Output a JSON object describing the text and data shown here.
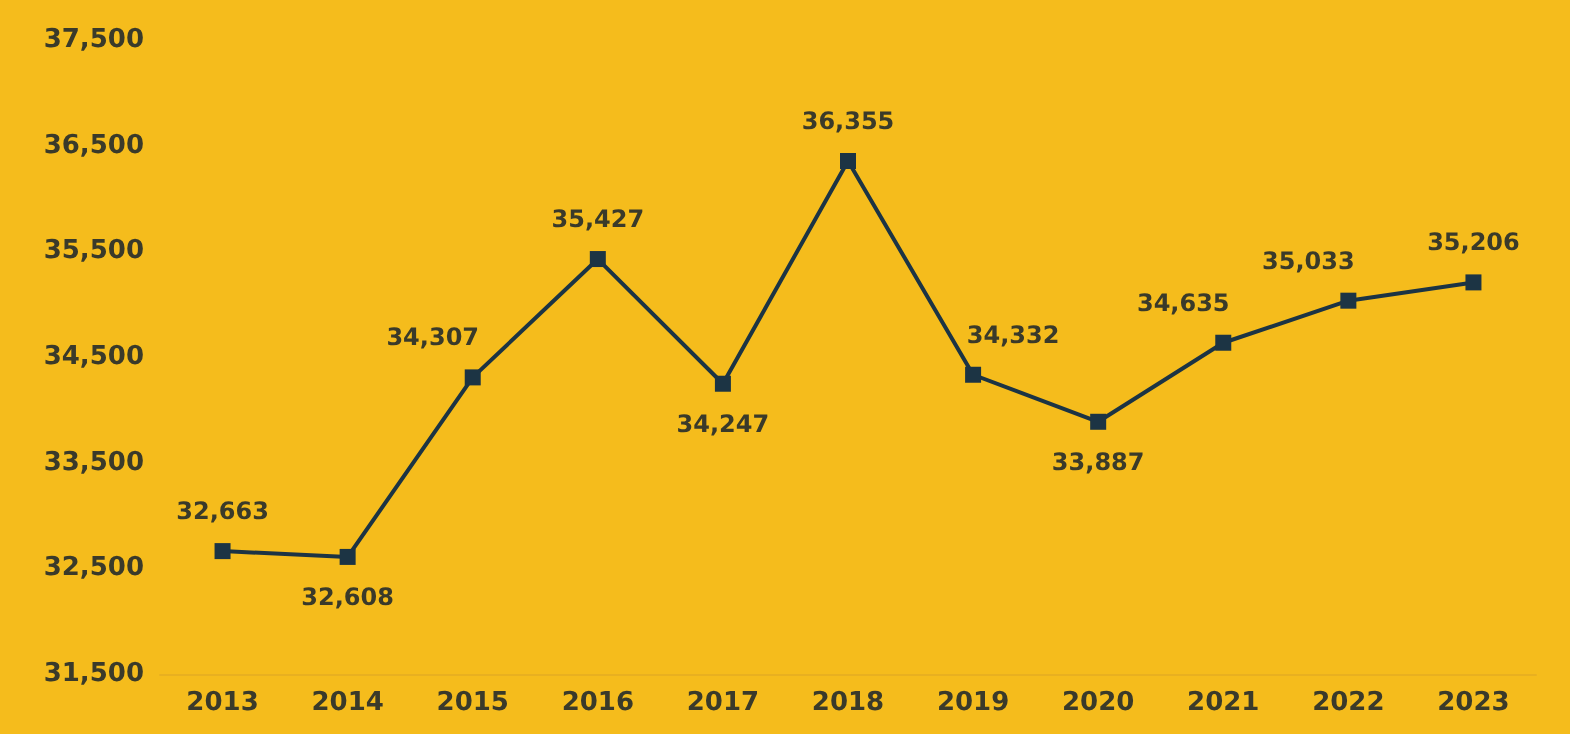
{
  "chart_data": {
    "type": "line",
    "categories": [
      "2013",
      "2014",
      "2015",
      "2016",
      "2017",
      "2018",
      "2019",
      "2020",
      "2021",
      "2022",
      "2023"
    ],
    "series": [
      {
        "color": "#1c3444",
        "values": [
          32663,
          32608,
          34307,
          35427,
          34247,
          36355,
          34332,
          33887,
          34635,
          35033,
          35206
        ],
        "value_labels": [
          "32,663",
          "32,608",
          "34,307",
          "35,427",
          "34,247",
          "36,355",
          "34,332",
          "33,887",
          "34,635",
          "35,033",
          "35,206"
        ]
      }
    ],
    "ylim": [
      31500,
      37500
    ],
    "yticks": [
      {
        "value": 31500,
        "label": "31,500"
      },
      {
        "value": 32500,
        "label": "32,500"
      },
      {
        "value": 33500,
        "label": "33,500"
      },
      {
        "value": 34500,
        "label": "34,500"
      },
      {
        "value": 35500,
        "label": "35,500"
      },
      {
        "value": 36500,
        "label": "36,500"
      },
      {
        "value": 37500,
        "label": "37,500"
      }
    ],
    "grid": false,
    "marker": "square",
    "line_style": "solid"
  }
}
